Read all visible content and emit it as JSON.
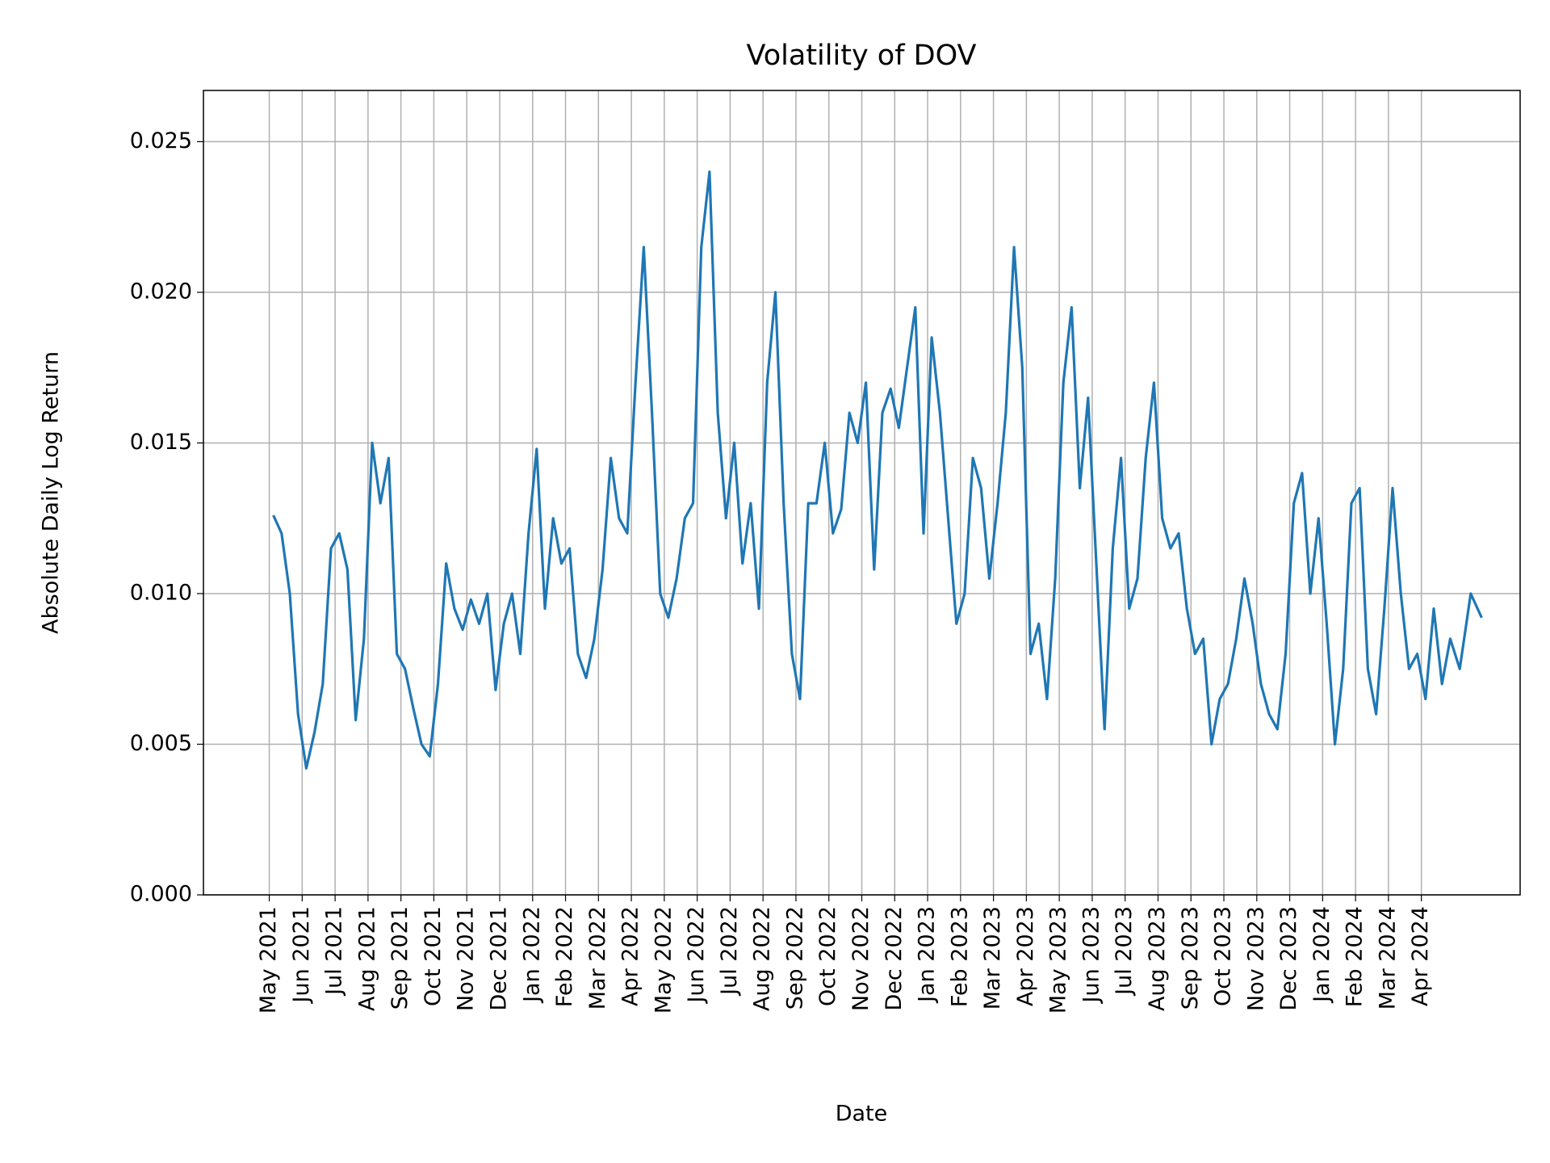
{
  "chart_data": {
    "type": "line",
    "title": "Volatility of DOV",
    "xlabel": "Date",
    "ylabel": "Absolute Daily Log Return",
    "color": "#1f77b4",
    "grid": true,
    "x": [
      "2021-05",
      "2021-05",
      "2021-05",
      "2021-05",
      "2021-06",
      "2021-06",
      "2021-06",
      "2021-06",
      "2021-07",
      "2021-07",
      "2021-07",
      "2021-07",
      "2021-08",
      "2021-08",
      "2021-08",
      "2021-08",
      "2021-09",
      "2021-09",
      "2021-09",
      "2021-09",
      "2021-10",
      "2021-10",
      "2021-10",
      "2021-10",
      "2021-11",
      "2021-11",
      "2021-11",
      "2021-11",
      "2021-12",
      "2021-12",
      "2021-12",
      "2021-12",
      "2022-01",
      "2022-01",
      "2022-01",
      "2022-01",
      "2022-02",
      "2022-02",
      "2022-02",
      "2022-02",
      "2022-03",
      "2022-03",
      "2022-03",
      "2022-03",
      "2022-04",
      "2022-04",
      "2022-04",
      "2022-04",
      "2022-05",
      "2022-05",
      "2022-05",
      "2022-05",
      "2022-06",
      "2022-06",
      "2022-06",
      "2022-06",
      "2022-07",
      "2022-07",
      "2022-07",
      "2022-07",
      "2022-08",
      "2022-08",
      "2022-08",
      "2022-08",
      "2022-09",
      "2022-09",
      "2022-09",
      "2022-09",
      "2022-10",
      "2022-10",
      "2022-10",
      "2022-10",
      "2022-11",
      "2022-11",
      "2022-11",
      "2022-11",
      "2022-12",
      "2022-12",
      "2022-12",
      "2022-12",
      "2023-01",
      "2023-01",
      "2023-01",
      "2023-01",
      "2023-02",
      "2023-02",
      "2023-02",
      "2023-02",
      "2023-03",
      "2023-03",
      "2023-03",
      "2023-03",
      "2023-04",
      "2023-04",
      "2023-04",
      "2023-04",
      "2023-05",
      "2023-05",
      "2023-05",
      "2023-05",
      "2023-06",
      "2023-06",
      "2023-06",
      "2023-06",
      "2023-07",
      "2023-07",
      "2023-07",
      "2023-07",
      "2023-08",
      "2023-08",
      "2023-08",
      "2023-08",
      "2023-09",
      "2023-09",
      "2023-09",
      "2023-09",
      "2023-10",
      "2023-10",
      "2023-10",
      "2023-10",
      "2023-11",
      "2023-11",
      "2023-11",
      "2023-11",
      "2023-12",
      "2023-12",
      "2023-12",
      "2023-12",
      "2024-01",
      "2024-01",
      "2024-01",
      "2024-01",
      "2024-02",
      "2024-02",
      "2024-02",
      "2024-02",
      "2024-03",
      "2024-03",
      "2024-03",
      "2024-03",
      "2024-04",
      "2024-04",
      "2024-04",
      "2024-04",
      "2024-05",
      "2024-05",
      "2024-05"
    ],
    "values": [
      0.0126,
      0.012,
      0.01,
      0.006,
      0.0042,
      0.0054,
      0.007,
      0.0115,
      0.012,
      0.0108,
      0.0058,
      0.0085,
      0.015,
      0.013,
      0.0145,
      0.008,
      0.0075,
      0.0062,
      0.005,
      0.0046,
      0.007,
      0.011,
      0.0095,
      0.0088,
      0.0098,
      0.009,
      0.01,
      0.0068,
      0.009,
      0.01,
      0.008,
      0.012,
      0.0148,
      0.0095,
      0.0125,
      0.011,
      0.0115,
      0.008,
      0.0072,
      0.0085,
      0.0108,
      0.0145,
      0.0125,
      0.012,
      0.017,
      0.0215,
      0.016,
      0.01,
      0.0092,
      0.0105,
      0.0125,
      0.013,
      0.0215,
      0.024,
      0.016,
      0.0125,
      0.015,
      0.011,
      0.013,
      0.0095,
      0.017,
      0.02,
      0.013,
      0.008,
      0.0065,
      0.013,
      0.013,
      0.015,
      0.012,
      0.0128,
      0.016,
      0.015,
      0.017,
      0.0108,
      0.016,
      0.0168,
      0.0155,
      0.0175,
      0.0195,
      0.012,
      0.0185,
      0.016,
      0.0125,
      0.009,
      0.01,
      0.0145,
      0.0135,
      0.0105,
      0.013,
      0.016,
      0.0215,
      0.0175,
      0.008,
      0.009,
      0.0065,
      0.0105,
      0.017,
      0.0195,
      0.0135,
      0.0165,
      0.011,
      0.0055,
      0.0115,
      0.0145,
      0.0095,
      0.0105,
      0.0145,
      0.017,
      0.0125,
      0.0115,
      0.012,
      0.0095,
      0.008,
      0.0085,
      0.005,
      0.0065,
      0.007,
      0.0085,
      0.0105,
      0.009,
      0.007,
      0.006,
      0.0055,
      0.008,
      0.013,
      0.014,
      0.01,
      0.0125,
      0.009,
      0.005,
      0.0075,
      0.013,
      0.0135,
      0.0075,
      0.006,
      0.0095,
      0.0135,
      0.01,
      0.0075,
      0.008,
      0.0065,
      0.0095,
      0.007,
      0.0085,
      0.0075,
      0.01,
      0.0092
    ],
    "xlim": [
      "2021-03",
      "2024-07"
    ],
    "xticks": [
      {
        "value": "2021-05",
        "label": "May 2021"
      },
      {
        "value": "2021-06",
        "label": "Jun 2021"
      },
      {
        "value": "2021-07",
        "label": "Jul 2021"
      },
      {
        "value": "2021-08",
        "label": "Aug 2021"
      },
      {
        "value": "2021-09",
        "label": "Sep 2021"
      },
      {
        "value": "2021-10",
        "label": "Oct 2021"
      },
      {
        "value": "2021-11",
        "label": "Nov 2021"
      },
      {
        "value": "2021-12",
        "label": "Dec 2021"
      },
      {
        "value": "2022-01",
        "label": "Jan 2022"
      },
      {
        "value": "2022-02",
        "label": "Feb 2022"
      },
      {
        "value": "2022-03",
        "label": "Mar 2022"
      },
      {
        "value": "2022-04",
        "label": "Apr 2022"
      },
      {
        "value": "2022-05",
        "label": "May 2022"
      },
      {
        "value": "2022-06",
        "label": "Jun 2022"
      },
      {
        "value": "2022-07",
        "label": "Jul 2022"
      },
      {
        "value": "2022-08",
        "label": "Aug 2022"
      },
      {
        "value": "2022-09",
        "label": "Sep 2022"
      },
      {
        "value": "2022-10",
        "label": "Oct 2022"
      },
      {
        "value": "2022-11",
        "label": "Nov 2022"
      },
      {
        "value": "2022-12",
        "label": "Dec 2022"
      },
      {
        "value": "2023-01",
        "label": "Jan 2023"
      },
      {
        "value": "2023-02",
        "label": "Feb 2023"
      },
      {
        "value": "2023-03",
        "label": "Mar 2023"
      },
      {
        "value": "2023-04",
        "label": "Apr 2023"
      },
      {
        "value": "2023-05",
        "label": "May 2023"
      },
      {
        "value": "2023-06",
        "label": "Jun 2023"
      },
      {
        "value": "2023-07",
        "label": "Jul 2023"
      },
      {
        "value": "2023-08",
        "label": "Aug 2023"
      },
      {
        "value": "2023-09",
        "label": "Sep 2023"
      },
      {
        "value": "2023-10",
        "label": "Oct 2023"
      },
      {
        "value": "2023-11",
        "label": "Nov 2023"
      },
      {
        "value": "2023-12",
        "label": "Dec 2023"
      },
      {
        "value": "2024-01",
        "label": "Jan 2024"
      },
      {
        "value": "2024-02",
        "label": "Feb 2024"
      },
      {
        "value": "2024-03",
        "label": "Mar 2024"
      },
      {
        "value": "2024-04",
        "label": "Apr 2024"
      }
    ],
    "ylim": [
      0,
      0.0267
    ],
    "yticks": [
      {
        "value": 0,
        "label": "0.000"
      },
      {
        "value": 0.005,
        "label": "0.005"
      },
      {
        "value": 0.01,
        "label": "0.010"
      },
      {
        "value": 0.015,
        "label": "0.015"
      },
      {
        "value": 0.02,
        "label": "0.020"
      },
      {
        "value": 0.025,
        "label": "0.025"
      }
    ]
  }
}
